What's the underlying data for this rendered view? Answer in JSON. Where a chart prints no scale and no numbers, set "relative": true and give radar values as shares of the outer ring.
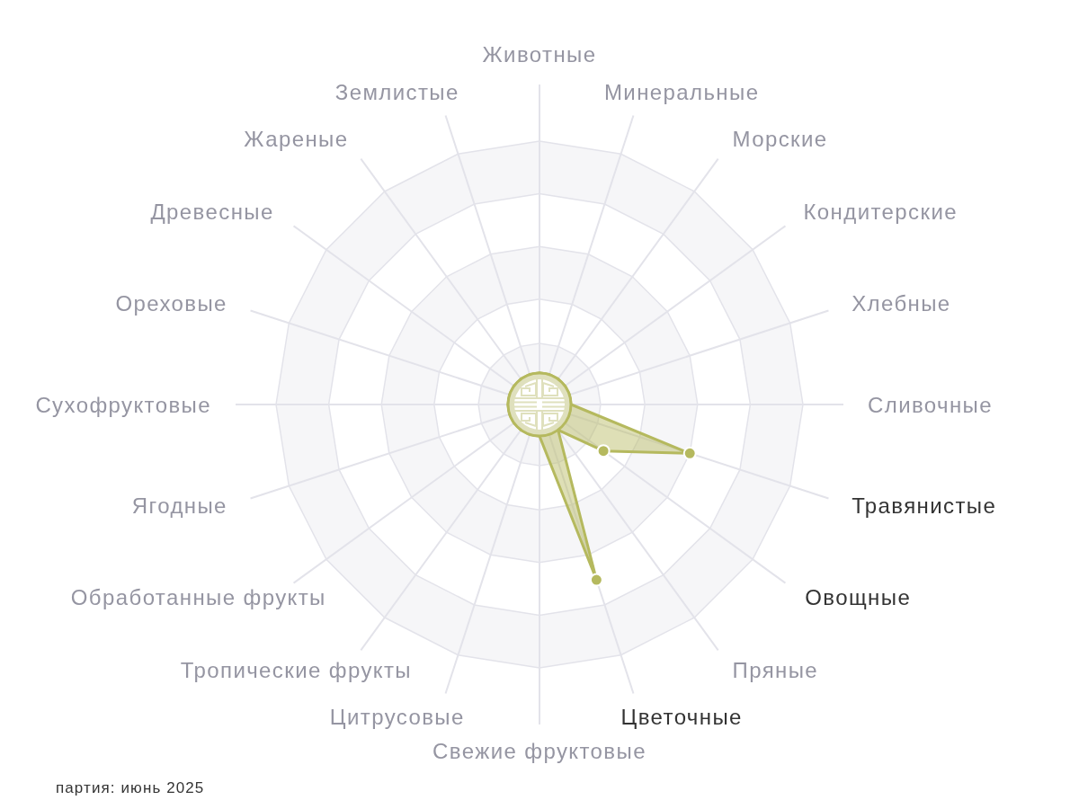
{
  "chart_data": {
    "type": "radar",
    "relative": true,
    "grid": true,
    "marker": "circle",
    "categories": [
      "Животные",
      "Минеральные",
      "Морские",
      "Кондитерские",
      "Хлебные",
      "Сливочные",
      "Травянистые",
      "Овощные",
      "Пряные",
      "Цветочные",
      "Свежие фруктовые",
      "Цитрусовые",
      "Тропические фрукты",
      "Обработанные фрукты",
      "Ягодные",
      "Сухофруктовые",
      "Ореховые",
      "Древесные",
      "Жареные",
      "Землистые"
    ],
    "series": [
      {
        "color": "#b5b95e",
        "values": [
          0.12,
          0.12,
          0.12,
          0.12,
          0.12,
          0.12,
          0.6,
          0.3,
          0.12,
          0.7,
          0.12,
          0.12,
          0.12,
          0.12,
          0.12,
          0.12,
          0.12,
          0.12,
          0.12,
          0.12
        ]
      }
    ],
    "annotations": [
      "партия: июнь 2025"
    ]
  }
}
